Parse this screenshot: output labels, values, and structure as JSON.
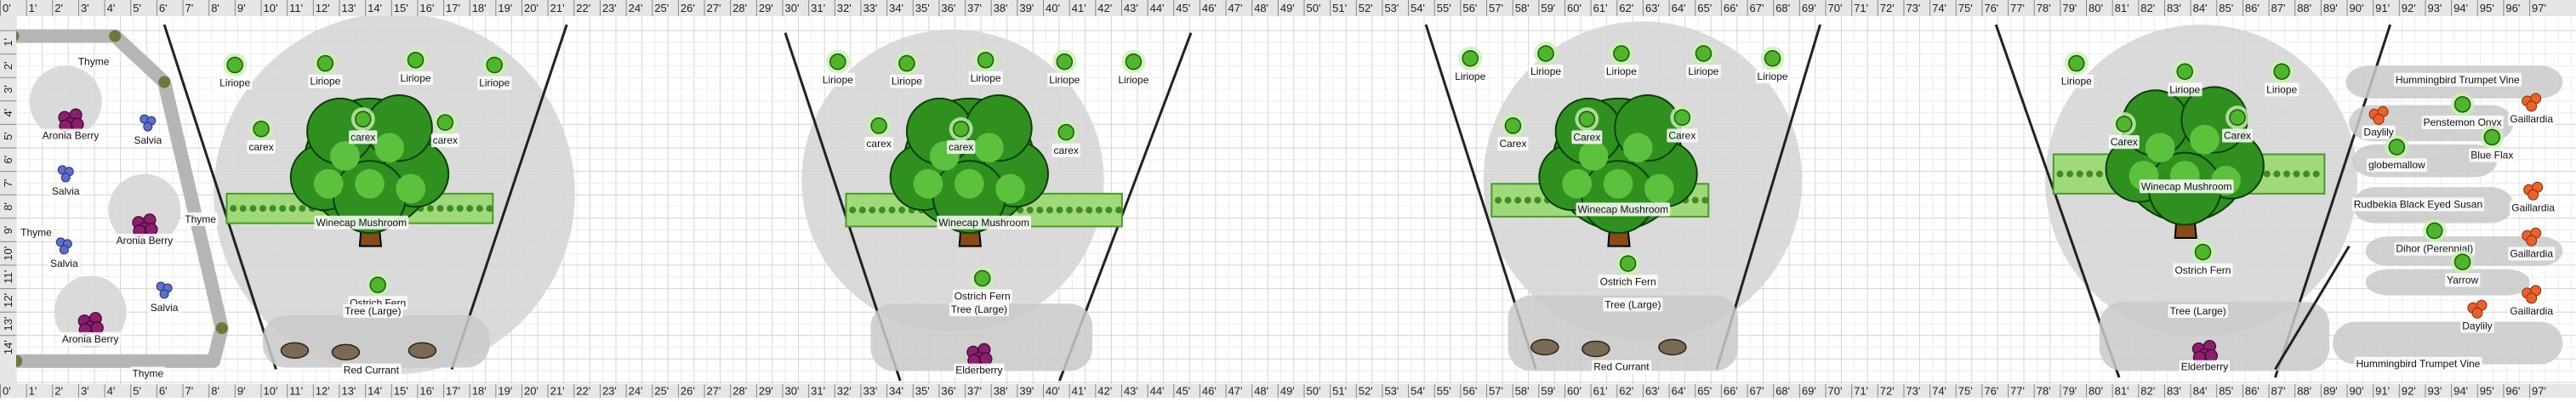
{
  "rulers": {
    "x": [
      "0'",
      "1'",
      "2'",
      "3'",
      "4'",
      "5'",
      "6'",
      "7'",
      "8'",
      "9'",
      "10'",
      "11'",
      "12'",
      "13'",
      "14'",
      "15'",
      "16'",
      "17'",
      "18'",
      "19'",
      "20'",
      "21'",
      "22'",
      "23'",
      "24'",
      "25'",
      "26'",
      "27'",
      "28'",
      "29'",
      "30'",
      "31'",
      "32'",
      "33'",
      "34'",
      "35'",
      "36'",
      "37'",
      "38'",
      "39'",
      "40'",
      "41'",
      "42'",
      "43'",
      "44'",
      "45'",
      "46'",
      "47'",
      "48'",
      "49'",
      "50'",
      "51'",
      "52'",
      "53'",
      "54'",
      "55'",
      "56'",
      "57'",
      "58'",
      "59'",
      "60'",
      "61'",
      "62'",
      "63'",
      "64'",
      "65'",
      "66'",
      "67'",
      "68'",
      "69'",
      "70'",
      "71'",
      "72'",
      "73'",
      "74'",
      "75'",
      "76'",
      "77'",
      "78'",
      "79'",
      "80'",
      "81'",
      "82'",
      "83'",
      "84'",
      "85'",
      "86'",
      "87'",
      "88'",
      "89'",
      "90'",
      "91'",
      "92'",
      "93'",
      "94'",
      "95'",
      "96'",
      "97'"
    ],
    "y": [
      "1'",
      "2'",
      "3'",
      "4'",
      "5'",
      "6'",
      "7'",
      "8'",
      "9'",
      "10'",
      "11'",
      "12'",
      "13'",
      "14'"
    ]
  },
  "plant_labels": [
    "Thyme",
    "Aronia Berry",
    "Salvia",
    "Salvia",
    "Aronia Berry",
    "Thyme",
    "Thyme",
    "Salvia",
    "Salvia",
    "Aronia Berry",
    "Thyme",
    "Liriope",
    "Liriope",
    "Liriope",
    "Liriope",
    "carex",
    "carex",
    "carex",
    "Winecap Mushroom",
    "Ostrich Fern",
    "Tree (Large)",
    "Red Currant",
    "Liriope",
    "Liriope",
    "Liriope",
    "Liriope",
    "Liriope",
    "carex",
    "carex",
    "carex",
    "Winecap Mushroom",
    "Ostrich Fern",
    "Tree (Large)",
    "Elderberry",
    "Liriope",
    "Liriope",
    "Liriope",
    "Liriope",
    "Liriope",
    "Carex",
    "Carex",
    "Carex",
    "Winecap Mushroom",
    "Ostrich Fern",
    "Tree (Large)",
    "Red Currant",
    "Liriope",
    "Liriope",
    "Liriope",
    "Carex",
    "Carex",
    "Winecap Mushroom",
    "Ostrich Fern",
    "Tree (Large)",
    "Elderberry",
    "Hummingbird Trumpet Vine",
    "Gaillardia",
    "Daylily",
    "Penstemon Onyx",
    "globemallow",
    "Blue Flax",
    "Rudbekia Black Eyed Susan",
    "Gaillardia",
    "Gaillardia",
    "Dihor (Perennial)",
    "Yarrow",
    "Gaillardia",
    "Daylily",
    "Hummingbird Trumpet Vine"
  ]
}
